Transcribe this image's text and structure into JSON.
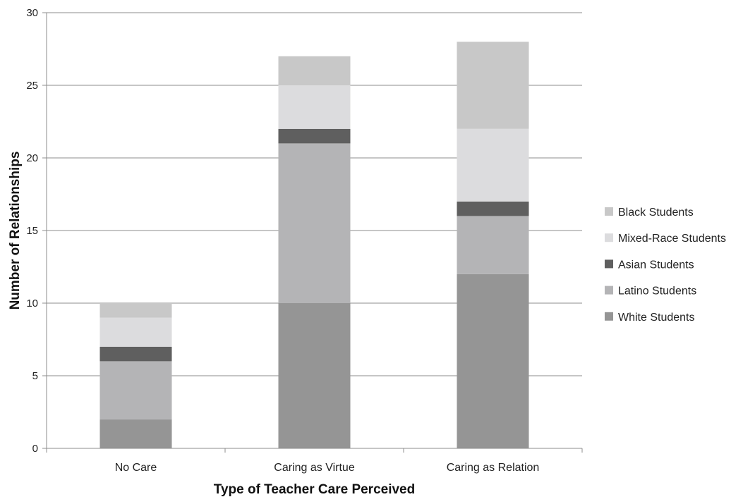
{
  "chart_data": {
    "type": "bar",
    "stacked": true,
    "categories": [
      "No Care",
      "Caring as Virtue",
      "Caring as Relation"
    ],
    "series": [
      {
        "name": "White Students",
        "values": [
          2,
          10,
          12
        ],
        "color": "#959595"
      },
      {
        "name": "Latino Students",
        "values": [
          4,
          11,
          4
        ],
        "color": "#b4b4b6"
      },
      {
        "name": "Asian Students",
        "values": [
          1,
          1,
          1
        ],
        "color": "#5f5f5f"
      },
      {
        "name": "Mixed-Race Students",
        "values": [
          2,
          3,
          5
        ],
        "color": "#dcdcde"
      },
      {
        "name": "Black Students",
        "values": [
          1,
          2,
          6
        ],
        "color": "#c8c8c8"
      }
    ],
    "xlabel": "Type of Teacher Care Perceived",
    "ylabel": "Number of Relationships",
    "ylim": [
      0,
      30
    ],
    "yticks": [
      0,
      5,
      10,
      15,
      20,
      25,
      30
    ],
    "grid": true,
    "legend_position": "right"
  }
}
